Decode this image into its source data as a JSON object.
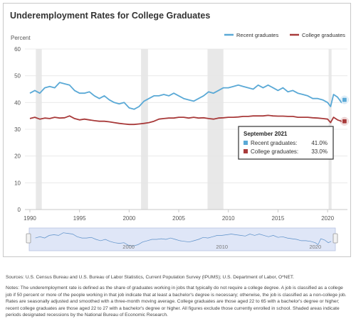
{
  "chart_data": {
    "type": "line",
    "title": "Underemployment Rates for College Graduates",
    "ylabel": "Percent",
    "xlabel": "",
    "ylim": [
      0,
      60
    ],
    "xlim": [
      1989.5,
      2022
    ],
    "yticks": [
      0,
      10,
      20,
      30,
      40,
      50,
      60
    ],
    "xticks": [
      "1990",
      "1995",
      "2000",
      "2005",
      "2010",
      "2015",
      "2020"
    ],
    "navigator_labels": [
      "2000",
      "2010",
      "2020"
    ],
    "grid": true,
    "legend_position": "top-right",
    "recessions": [
      [
        1990.6,
        1991.2
      ],
      [
        2001.2,
        2001.9
      ],
      [
        2007.9,
        2009.5
      ],
      [
        2020.1,
        2020.4
      ]
    ],
    "x": [
      1990.0,
      1990.5,
      1991.0,
      1991.5,
      1992.0,
      1992.5,
      1993.0,
      1993.5,
      1994.0,
      1994.5,
      1995.0,
      1995.5,
      1996.0,
      1996.5,
      1997.0,
      1997.5,
      1998.0,
      1998.5,
      1999.0,
      1999.5,
      2000.0,
      2000.5,
      2001.0,
      2001.5,
      2002.0,
      2002.5,
      2003.0,
      2003.5,
      2004.0,
      2004.5,
      2005.0,
      2005.5,
      2006.0,
      2006.5,
      2007.0,
      2007.5,
      2008.0,
      2008.5,
      2009.0,
      2009.5,
      2010.0,
      2010.5,
      2011.0,
      2011.5,
      2012.0,
      2012.5,
      2013.0,
      2013.5,
      2014.0,
      2014.5,
      2015.0,
      2015.5,
      2016.0,
      2016.5,
      2017.0,
      2017.5,
      2018.0,
      2018.5,
      2019.0,
      2019.5,
      2020.0,
      2020.3,
      2020.6,
      2021.0,
      2021.4,
      2021.7
    ],
    "series": [
      {
        "name": "Recent graduates",
        "color": "#5aa9d6",
        "values": [
          43.5,
          44.5,
          43.5,
          45.5,
          46.0,
          45.5,
          47.5,
          47.0,
          46.5,
          44.5,
          43.5,
          43.5,
          44.0,
          42.5,
          41.5,
          42.5,
          41.0,
          40.0,
          39.5,
          40.0,
          38.0,
          37.5,
          38.5,
          40.5,
          41.5,
          42.5,
          42.5,
          43.0,
          42.5,
          43.5,
          42.5,
          41.5,
          41.0,
          40.5,
          41.5,
          42.5,
          44.0,
          43.5,
          44.5,
          45.5,
          45.5,
          46.0,
          46.5,
          46.0,
          45.5,
          45.0,
          46.5,
          45.5,
          46.5,
          45.5,
          44.5,
          45.5,
          44.0,
          44.5,
          43.5,
          43.0,
          42.5,
          41.5,
          41.5,
          41.0,
          40.0,
          38.5,
          43.0,
          42.0,
          40.0,
          41.0
        ]
      },
      {
        "name": "College graduates",
        "color": "#a83a3a",
        "values": [
          34.0,
          34.5,
          33.8,
          34.2,
          34.0,
          34.5,
          34.2,
          34.3,
          35.0,
          34.0,
          33.5,
          33.8,
          33.5,
          33.2,
          33.0,
          33.0,
          32.8,
          32.5,
          32.2,
          32.0,
          31.8,
          31.8,
          32.0,
          32.2,
          32.5,
          33.0,
          33.8,
          34.0,
          34.2,
          34.2,
          34.5,
          34.5,
          34.2,
          34.5,
          34.2,
          34.3,
          34.0,
          33.8,
          34.2,
          34.3,
          34.5,
          34.5,
          34.6,
          34.8,
          34.8,
          35.0,
          35.0,
          35.0,
          35.2,
          35.0,
          34.9,
          34.9,
          34.8,
          34.8,
          34.5,
          34.5,
          34.5,
          34.3,
          34.2,
          34.0,
          33.8,
          32.5,
          34.5,
          33.5,
          33.0,
          33.0
        ]
      }
    ],
    "tooltip": {
      "title": "September 2021",
      "rows": [
        {
          "label": "Recent graduates:",
          "value": "41.0%",
          "color": "#5aa9d6"
        },
        {
          "label": "College graduates:",
          "value": "33.0%",
          "color": "#a83a3a"
        }
      ]
    }
  },
  "footnotes": {
    "sources": "Sources: U.S. Census Bureau and U.S. Bureau of Labor Statistics, Current Population Survey (IPUMS); U.S. Department of Labor, O*NET.",
    "notes": "Notes: The underemployment rate is defined as the share of graduates working in jobs that typically do not require a college degree. A job is classified as a college job if 50 percent or more of the people working in that job indicate that at least a bachelor's degree is necessary; otherwise, the job is classified as a non-college job. Rates are seasonally adjusted and smoothed with a three-month moving average. College graduates are those aged 22 to 65 with a bachelor's degree or higher; recent college graduates are those aged 22 to 27 with a bachelor's degree or higher. All figures exclude those currently enrolled in school. Shaded areas indicate periods designated recessions by the National Bureau of Economic Research."
  }
}
